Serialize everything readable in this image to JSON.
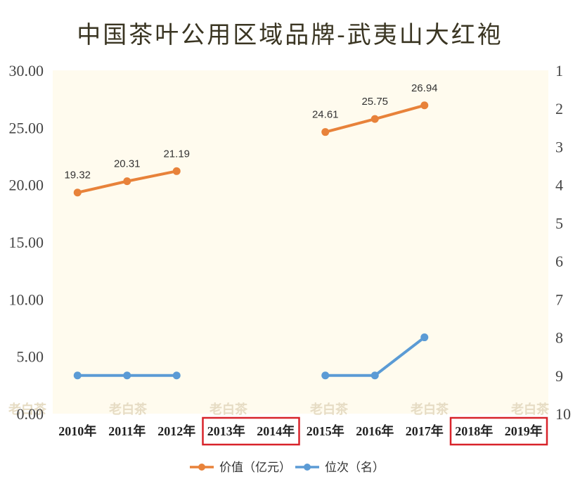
{
  "chart_data": {
    "type": "line",
    "title": "中国茶叶公用区域品牌-武夷山大红袍",
    "categories": [
      "2010年",
      "2011年",
      "2012年",
      "2013年",
      "2014年",
      "2015年",
      "2016年",
      "2017年",
      "2018年",
      "2019年"
    ],
    "highlighted_categories": [
      "2013年",
      "2014年",
      "2018年",
      "2019年"
    ],
    "highlight_color": "#d8232a",
    "y_left": {
      "lim": [
        0,
        30
      ],
      "ticks": [
        "0.00",
        "5.00",
        "10.00",
        "15.00",
        "20.00",
        "25.00",
        "30.00"
      ]
    },
    "y_right": {
      "lim": [
        1,
        10
      ],
      "inverted": true,
      "ticks": [
        "1",
        "2",
        "3",
        "4",
        "5",
        "6",
        "7",
        "8",
        "9",
        "10"
      ]
    },
    "grid": false,
    "plot_background": "#fffbee",
    "legend_position": "bottom",
    "series": [
      {
        "name": "价值（亿元）",
        "axis": "left",
        "color": "#e8823a",
        "values": [
          19.32,
          20.31,
          21.19,
          null,
          null,
          24.61,
          25.75,
          26.94,
          null,
          null
        ],
        "labels": [
          "19.32",
          "20.31",
          "21.19",
          null,
          null,
          "24.61",
          "25.75",
          "26.94",
          null,
          null
        ]
      },
      {
        "name": "位次（名）",
        "axis": "right",
        "color": "#5b9bd5",
        "values": [
          9,
          9,
          9,
          null,
          null,
          9,
          9,
          8,
          null,
          null
        ]
      }
    ],
    "watermarks": [
      "老白茶",
      "老白茶",
      "老白茶",
      "老白茶",
      "老白茶",
      "老白茶"
    ]
  }
}
